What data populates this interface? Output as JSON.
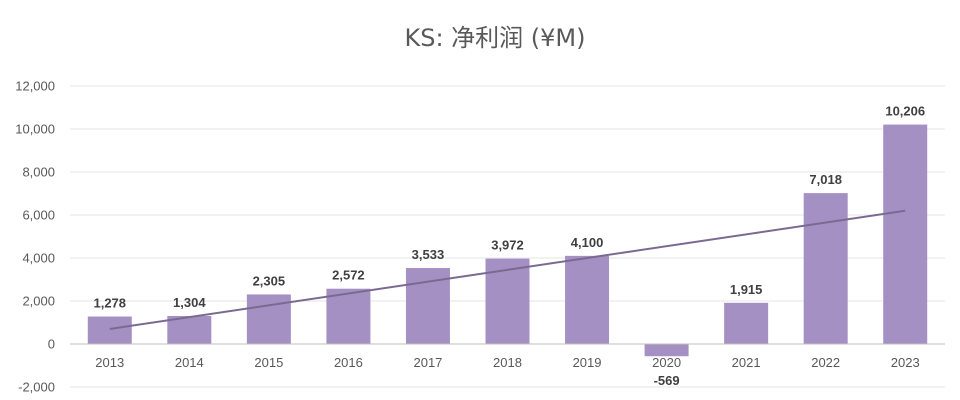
{
  "chart_data": {
    "type": "bar",
    "title": "KS: 净利润 (¥M)",
    "xlabel": "",
    "ylabel": "",
    "categories": [
      "2013",
      "2014",
      "2015",
      "2016",
      "2017",
      "2018",
      "2019",
      "2020",
      "2021",
      "2022",
      "2023"
    ],
    "values": [
      1278,
      1304,
      2305,
      2572,
      3533,
      3972,
      4100,
      -569,
      1915,
      7018,
      10206
    ],
    "data_labels": [
      "1,278",
      "1,304",
      "2,305",
      "2,572",
      "3,533",
      "3,972",
      "4,100",
      "-569",
      "1,915",
      "7,018",
      "10,206"
    ],
    "ylim": [
      -2000,
      12000
    ],
    "yticks": [
      12000,
      10000,
      8000,
      6000,
      4000,
      2000,
      0,
      -2000
    ],
    "ytick_labels": [
      "12,000",
      "10,000",
      "8,000",
      "6,000",
      "4,000",
      "2,000",
      "0",
      "-2,000"
    ],
    "grid": true,
    "legend": "none",
    "trendline": {
      "type": "linear",
      "start_value": 700,
      "end_value": 6200
    },
    "colors": {
      "bar": "#a590c3",
      "trend": "#7a6a92",
      "text": "#595959"
    }
  }
}
